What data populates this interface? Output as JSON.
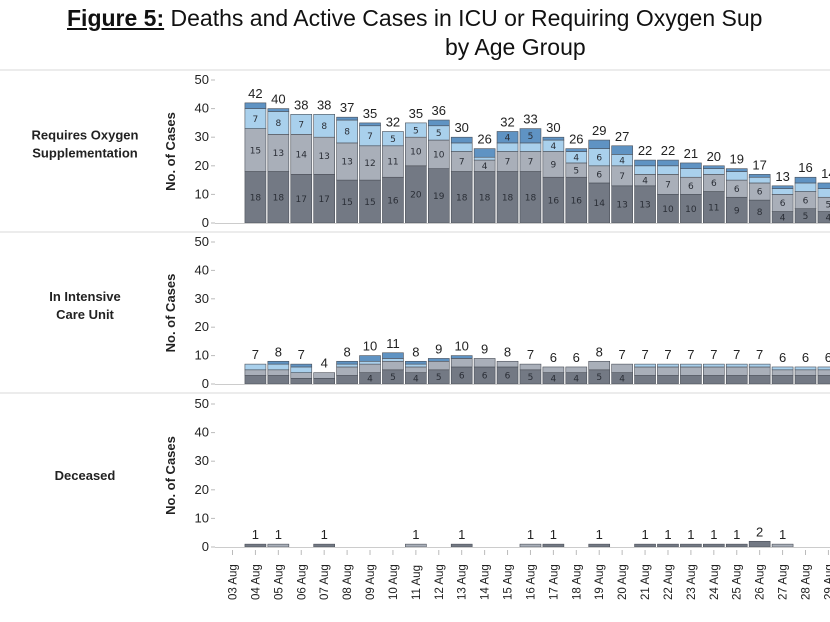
{
  "title": {
    "figure_label": "Figure 5:",
    "line1": "Deaths and Active Cases in ICU or Requiring Oxygen Sup",
    "line2": "by Age Group"
  },
  "colors": [
    "#737984",
    "#a9afb9",
    "#a9d0ec",
    "#5f93c3"
  ],
  "chart_data": [
    {
      "type": "bar",
      "stacked": true,
      "row_label": "Requires Oxygen Supplementation",
      "ylabel": "No. of Cases",
      "ylim": [
        0,
        50
      ],
      "yticks": [
        0,
        10,
        20,
        30,
        40,
        50
      ],
      "grid": false,
      "categories": [
        "03 Aug",
        "04 Aug",
        "05 Aug",
        "06 Aug",
        "07 Aug",
        "08 Aug",
        "09 Aug",
        "10 Aug",
        "11 Aug",
        "12 Aug",
        "13 Aug",
        "14 Aug",
        "15 Aug",
        "16 Aug",
        "17 Aug",
        "18 Aug",
        "19 Aug",
        "20 Aug",
        "21 Aug",
        "22 Aug",
        "23 Aug",
        "24 Aug",
        "25 Aug",
        "26 Aug",
        "27 Aug",
        "28 Aug",
        "29 Aug"
      ],
      "series": [
        {
          "values": [
            0,
            18,
            18,
            17,
            17,
            15,
            15,
            16,
            20,
            19,
            18,
            18,
            18,
            18,
            16,
            16,
            14,
            13,
            13,
            10,
            10,
            11,
            9,
            8,
            4,
            5,
            4
          ]
        },
        {
          "values": [
            0,
            15,
            13,
            14,
            13,
            13,
            12,
            11,
            10,
            10,
            7,
            4,
            7,
            7,
            9,
            5,
            6,
            7,
            4,
            7,
            6,
            6,
            6,
            6,
            6,
            6,
            5
          ]
        },
        {
          "values": [
            0,
            7,
            8,
            7,
            8,
            8,
            7,
            5,
            5,
            5,
            3,
            1,
            3,
            3,
            4,
            4,
            6,
            4,
            3,
            3,
            3,
            2,
            3,
            2,
            2,
            3,
            3
          ]
        },
        {
          "values": [
            0,
            2,
            1,
            0,
            0,
            1,
            1,
            0,
            0,
            2,
            2,
            3,
            4,
            5,
            1,
            1,
            3,
            3,
            2,
            2,
            2,
            1,
            1,
            1,
            1,
            2,
            2
          ]
        }
      ],
      "totals": [
        0,
        42,
        40,
        38,
        38,
        37,
        35,
        32,
        35,
        36,
        30,
        26,
        32,
        33,
        30,
        26,
        29,
        27,
        22,
        22,
        21,
        20,
        19,
        17,
        13,
        16,
        14
      ]
    },
    {
      "type": "bar",
      "stacked": true,
      "row_label": "In Intensive Care Unit",
      "ylabel": "No. of Cases",
      "ylim": [
        0,
        50
      ],
      "yticks": [
        0,
        10,
        20,
        30,
        40,
        50
      ],
      "grid": false,
      "categories": [
        "03 Aug",
        "04 Aug",
        "05 Aug",
        "06 Aug",
        "07 Aug",
        "08 Aug",
        "09 Aug",
        "10 Aug",
        "11 Aug",
        "12 Aug",
        "13 Aug",
        "14 Aug",
        "15 Aug",
        "16 Aug",
        "17 Aug",
        "18 Aug",
        "19 Aug",
        "20 Aug",
        "21 Aug",
        "22 Aug",
        "23 Aug",
        "24 Aug",
        "25 Aug",
        "26 Aug",
        "27 Aug",
        "28 Aug",
        "29 Aug"
      ],
      "series": [
        {
          "values": [
            0,
            3,
            3,
            2,
            2,
            3,
            4,
            5,
            4,
            5,
            6,
            6,
            6,
            5,
            4,
            4,
            5,
            4,
            3,
            3,
            3,
            3,
            3,
            3,
            3,
            3,
            3
          ]
        },
        {
          "values": [
            0,
            2,
            2,
            2,
            2,
            3,
            3,
            3,
            2,
            3,
            3,
            3,
            2,
            2,
            2,
            2,
            3,
            3,
            3,
            3,
            3,
            3,
            3,
            3,
            2,
            2,
            2
          ]
        },
        {
          "values": [
            0,
            2,
            2,
            2,
            0,
            1,
            1,
            1,
            1,
            0,
            0,
            0,
            0,
            0,
            0,
            0,
            0,
            0,
            1,
            1,
            1,
            1,
            1,
            1,
            1,
            1,
            1
          ]
        },
        {
          "values": [
            0,
            0,
            1,
            1,
            0,
            1,
            2,
            2,
            1,
            1,
            1,
            0,
            0,
            0,
            0,
            0,
            0,
            0,
            0,
            0,
            0,
            0,
            0,
            0,
            0,
            0,
            0
          ]
        }
      ],
      "totals": [
        0,
        7,
        8,
        7,
        4,
        8,
        10,
        11,
        8,
        9,
        10,
        9,
        8,
        7,
        6,
        6,
        8,
        7,
        7,
        7,
        7,
        7,
        7,
        7,
        6,
        6,
        6
      ]
    },
    {
      "type": "bar",
      "stacked": true,
      "row_label": "Deceased",
      "ylabel": "No. of Cases",
      "ylim": [
        0,
        50
      ],
      "yticks": [
        0,
        10,
        20,
        30,
        40,
        50
      ],
      "grid": false,
      "categories": [
        "03 Aug",
        "04 Aug",
        "05 Aug",
        "06 Aug",
        "07 Aug",
        "08 Aug",
        "09 Aug",
        "10 Aug",
        "11 Aug",
        "12 Aug",
        "13 Aug",
        "14 Aug",
        "15 Aug",
        "16 Aug",
        "17 Aug",
        "18 Aug",
        "19 Aug",
        "20 Aug",
        "21 Aug",
        "22 Aug",
        "23 Aug",
        "24 Aug",
        "25 Aug",
        "26 Aug",
        "27 Aug",
        "28 Aug",
        "29 Aug"
      ],
      "series": [
        {
          "values": [
            0,
            1,
            0,
            0,
            1,
            0,
            0,
            0,
            0,
            0,
            1,
            0,
            0,
            0,
            1,
            0,
            1,
            0,
            1,
            1,
            1,
            1,
            1,
            2,
            0,
            0,
            0
          ]
        },
        {
          "values": [
            0,
            0,
            1,
            0,
            0,
            0,
            0,
            0,
            1,
            0,
            0,
            0,
            0,
            1,
            0,
            0,
            0,
            0,
            0,
            0,
            0,
            0,
            0,
            0,
            1,
            0,
            0
          ]
        },
        {
          "values": [
            0,
            0,
            0,
            0,
            0,
            0,
            0,
            0,
            0,
            0,
            0,
            0,
            0,
            0,
            0,
            0,
            0,
            0,
            0,
            0,
            0,
            0,
            0,
            0,
            0,
            0,
            0
          ]
        },
        {
          "values": [
            0,
            0,
            0,
            0,
            0,
            0,
            0,
            0,
            0,
            0,
            0,
            0,
            0,
            0,
            0,
            0,
            0,
            0,
            0,
            0,
            0,
            0,
            0,
            0,
            0,
            0,
            0
          ]
        }
      ],
      "totals": [
        0,
        1,
        1,
        0,
        1,
        0,
        0,
        0,
        1,
        0,
        1,
        0,
        0,
        1,
        1,
        0,
        1,
        0,
        1,
        1,
        1,
        1,
        1,
        2,
        1,
        0,
        0
      ]
    }
  ]
}
